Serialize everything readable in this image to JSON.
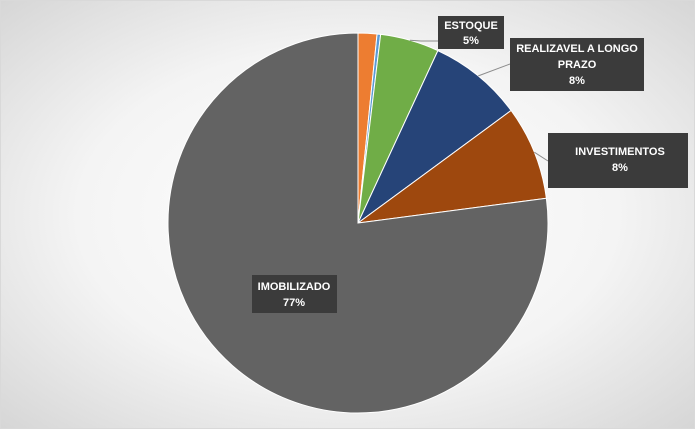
{
  "chart_data": {
    "type": "pie",
    "slices": [
      {
        "label": "",
        "value": 1.6,
        "color": "#ED7D31"
      },
      {
        "label": "",
        "value": 0.3,
        "color": "#5B9BD5"
      },
      {
        "label": "ESTOQUE",
        "value": 5,
        "display": "5%",
        "color": "#70AD47"
      },
      {
        "label": "REALIZAVEL A LONGO PRAZO",
        "value": 8,
        "display": "8%",
        "color": "#264478"
      },
      {
        "label": "INVESTIMENTOS",
        "value": 8,
        "display": "8%",
        "color": "#9E480E"
      },
      {
        "label": "IMOBILIZADO",
        "value": 77,
        "display": "77%",
        "color": "#636363"
      }
    ],
    "start_angle_deg": 0,
    "direction": "clockwise",
    "legend": "none"
  }
}
